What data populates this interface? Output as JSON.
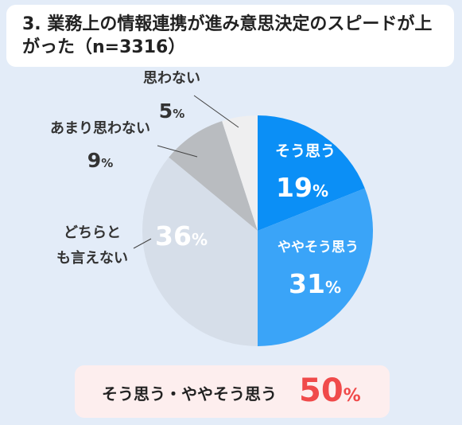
{
  "title": "3. 業務上の情報連携が進み意思決定のスピードが上がった（n=3316）",
  "chart_data": {
    "type": "pie",
    "start": "12 o'clock",
    "direction": "clockwise",
    "slices": [
      {
        "label": "そう思う",
        "value": 19,
        "color": "#0b8ff6"
      },
      {
        "label": "ややそう思う",
        "value": 31,
        "color": "#3aa4f8"
      },
      {
        "label": "どちらとも言えない",
        "value": 36,
        "color": "#d6dee9"
      },
      {
        "label": "あまり思わない",
        "value": 9,
        "color": "#b9bcc0"
      },
      {
        "label": "思わない",
        "value": 5,
        "color": "#efeff0"
      }
    ],
    "unit": "%"
  },
  "summary": {
    "label": "そう思う・ややそう思う",
    "value": "50",
    "unit": "%"
  }
}
